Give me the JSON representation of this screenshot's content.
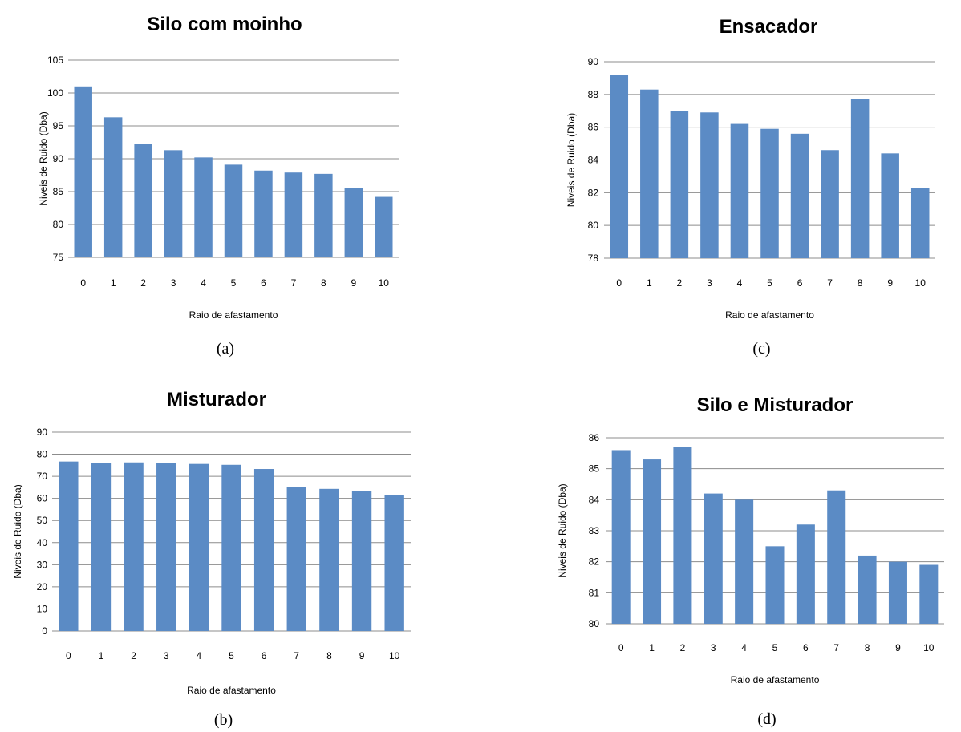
{
  "colors": {
    "bar": "#5b8bc5",
    "grid": "#8c8c8c"
  },
  "chart_data": [
    {
      "type": "bar",
      "title": "Silo com moinho",
      "caption": "(a)",
      "xlabel": "Raio de afastamento",
      "ylabel": "Niveis de Ruido (Dba)",
      "categories": [
        "0",
        "1",
        "2",
        "3",
        "4",
        "5",
        "6",
        "7",
        "8",
        "9",
        "10"
      ],
      "values": [
        101,
        96.3,
        92.2,
        91.3,
        90.2,
        89.1,
        88.2,
        87.9,
        87.7,
        85.5,
        84.2
      ],
      "ylim": [
        75,
        105
      ],
      "yticks": [
        "75",
        "80",
        "85",
        "90",
        "95",
        "100",
        "105"
      ],
      "grid": true
    },
    {
      "type": "bar",
      "title": "Misturador",
      "caption": "(b)",
      "xlabel": "Raio de afastamento",
      "ylabel": "Niveis de Ruido (Dba)",
      "categories": [
        "0",
        "1",
        "2",
        "3",
        "4",
        "5",
        "6",
        "7",
        "8",
        "9",
        "10"
      ],
      "values": [
        76.7,
        76.2,
        76.3,
        76.2,
        75.6,
        75.2,
        73.3,
        65.1,
        64.3,
        63.2,
        61.6
      ],
      "ylim": [
        0,
        90
      ],
      "yticks": [
        "0",
        "10",
        "20",
        "30",
        "40",
        "50",
        "60",
        "70",
        "80",
        "90"
      ],
      "grid": true
    },
    {
      "type": "bar",
      "title": "Ensacador",
      "caption": "(c)",
      "xlabel": "Raio de afastamento",
      "ylabel": "Niveis de Ruido (Dba)",
      "categories": [
        "0",
        "1",
        "2",
        "3",
        "4",
        "5",
        "6",
        "7",
        "8",
        "9",
        "10"
      ],
      "values": [
        89.2,
        88.3,
        87.0,
        86.9,
        86.2,
        85.9,
        85.6,
        84.6,
        87.7,
        84.4,
        82.3
      ],
      "ylim": [
        78,
        90
      ],
      "yticks": [
        "78",
        "80",
        "82",
        "84",
        "86",
        "88",
        "90"
      ],
      "grid": true
    },
    {
      "type": "bar",
      "title": "Silo e Misturador",
      "caption": "(d)",
      "xlabel": "Raio de afastamento",
      "ylabel": "Niveis de Ruido (Dba)",
      "categories": [
        "0",
        "1",
        "2",
        "3",
        "4",
        "5",
        "6",
        "7",
        "8",
        "9",
        "10"
      ],
      "values": [
        85.6,
        85.3,
        85.7,
        84.2,
        84.0,
        82.5,
        83.2,
        84.3,
        82.2,
        82.0,
        81.9
      ],
      "ylim": [
        80,
        86
      ],
      "yticks": [
        "80",
        "81",
        "82",
        "83",
        "84",
        "85",
        "86"
      ],
      "grid": true
    }
  ]
}
